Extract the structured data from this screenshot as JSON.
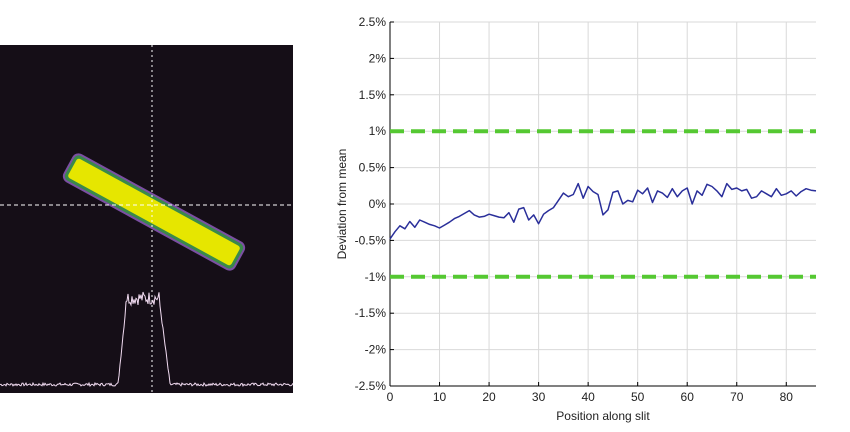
{
  "chart_data": [
    {
      "type": "image",
      "colors": {
        "background": "#150e17",
        "bar_fill": "#e6e600",
        "bar_edge": "#3a8a4a",
        "bar_outline": "#7b4fa3",
        "crosshair": "#ffffff",
        "profile": "#f2dcf2"
      }
    },
    {
      "type": "line",
      "title": "",
      "xlabel": "Position along slit",
      "ylabel": "Deviation from mean",
      "xlim": [
        0,
        86
      ],
      "ylim": [
        -2.5,
        2.5
      ],
      "xticks": [
        "0",
        "10",
        "20",
        "30",
        "40",
        "50",
        "60",
        "70",
        "80"
      ],
      "yticks": [
        "2.5%",
        "2%",
        "1.5%",
        "1%",
        "0.5%",
        "0%",
        "-0.5%",
        "-1%",
        "-1.5%",
        "-2%",
        "-2.5%"
      ],
      "grid": true,
      "colors": {
        "line": "#2a2f9a",
        "limits": "#55c832",
        "grid": "#d9d9d9"
      },
      "limits": [
        1,
        -1
      ],
      "series": [
        {
          "x": [
            0,
            1,
            2,
            3,
            4,
            5,
            6,
            7,
            8,
            9,
            10,
            11,
            12,
            13,
            14,
            15,
            16,
            17,
            18,
            19,
            20,
            21,
            22,
            23,
            24,
            25,
            26,
            27,
            28,
            29,
            30,
            31,
            32,
            33,
            34,
            35,
            36,
            37,
            38,
            39,
            40,
            41,
            42,
            43,
            44,
            45,
            46,
            47,
            48,
            49,
            50,
            51,
            52,
            53,
            54,
            55,
            56,
            57,
            58,
            59,
            60,
            61,
            62,
            63,
            64,
            65,
            66,
            67,
            68,
            69,
            70,
            71,
            72,
            73,
            74,
            75,
            76,
            77,
            78,
            79,
            80,
            81,
            82,
            83,
            84,
            85,
            86
          ],
          "values": [
            -0.48,
            -0.38,
            -0.3,
            -0.34,
            -0.24,
            -0.32,
            -0.22,
            -0.25,
            -0.28,
            -0.3,
            -0.33,
            -0.29,
            -0.25,
            -0.2,
            -0.17,
            -0.13,
            -0.09,
            -0.15,
            -0.18,
            -0.17,
            -0.14,
            -0.16,
            -0.18,
            -0.19,
            -0.12,
            -0.25,
            -0.07,
            -0.05,
            -0.22,
            -0.15,
            -0.27,
            -0.14,
            -0.09,
            -0.05,
            0.05,
            0.15,
            0.1,
            0.13,
            0.28,
            0.08,
            0.24,
            0.17,
            0.13,
            -0.15,
            -0.08,
            0.16,
            0.18,
            0.0,
            0.05,
            0.03,
            0.19,
            0.14,
            0.22,
            0.02,
            0.18,
            0.15,
            0.09,
            0.21,
            0.1,
            0.18,
            0.22,
            0.0,
            0.18,
            0.12,
            0.27,
            0.24,
            0.18,
            0.1,
            0.28,
            0.2,
            0.22,
            0.18,
            0.2,
            0.08,
            0.1,
            0.18,
            0.14,
            0.1,
            0.21,
            0.12,
            0.14,
            0.18,
            0.11,
            0.17,
            0.21,
            0.19,
            0.18
          ]
        }
      ]
    }
  ]
}
